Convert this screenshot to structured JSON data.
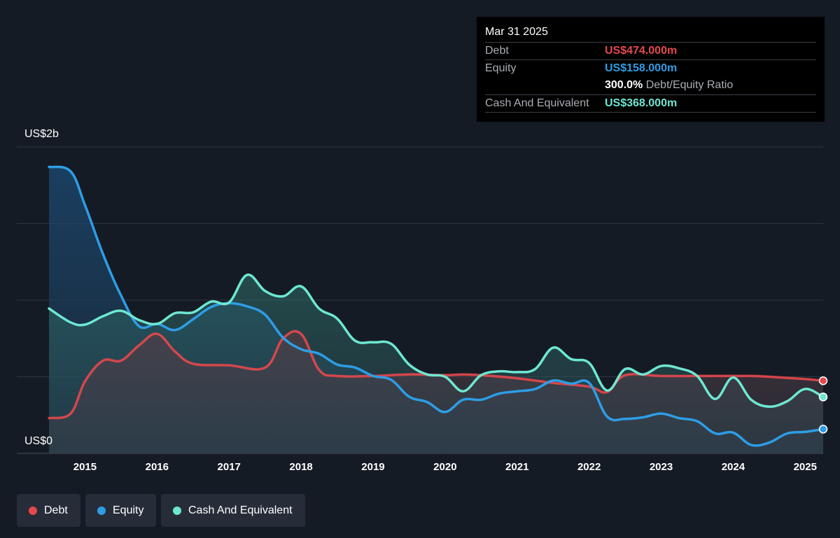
{
  "tooltip": {
    "date": "Mar 31 2025",
    "debt_label": "Debt",
    "debt_value": "US$474.000m",
    "equity_label": "Equity",
    "equity_value": "US$158.000m",
    "ratio_value": "300.0%",
    "ratio_label": "Debt/Equity Ratio",
    "cash_label": "Cash And Equivalent",
    "cash_value": "US$368.000m"
  },
  "legend": [
    {
      "name": "Debt",
      "color": "#e5484d"
    },
    {
      "name": "Equity",
      "color": "#2e9de6"
    },
    {
      "name": "Cash And Equivalent",
      "color": "#6ee7d2"
    }
  ],
  "colors": {
    "debt": "#e5484d",
    "equity": "#2e9de6",
    "cash": "#6ee7d2",
    "background": "#151b24",
    "grid": "#3a4350"
  },
  "chart_data": {
    "type": "area",
    "y_axis_labels": {
      "top": "US$2b",
      "bottom": "US$0"
    },
    "ylim": [
      0,
      2000
    ],
    "xlim": [
      2014.5,
      2025.25
    ],
    "x_ticks": [
      "2015",
      "2016",
      "2017",
      "2018",
      "2019",
      "2020",
      "2021",
      "2022",
      "2023",
      "2024",
      "2025"
    ],
    "grid": true,
    "series": [
      {
        "name": "Debt",
        "x": [
          2014.5,
          2014.8,
          2015.0,
          2015.25,
          2015.5,
          2015.75,
          2016.0,
          2016.25,
          2016.5,
          2017.0,
          2017.5,
          2017.75,
          2018.0,
          2018.25,
          2018.5,
          2019.0,
          2019.5,
          2020.0,
          2020.25,
          2020.5,
          2021.0,
          2021.5,
          2022.0,
          2022.25,
          2022.5,
          2023.0,
          2023.5,
          2024.0,
          2024.25,
          2024.5,
          2025.0,
          2025.25
        ],
        "y": [
          230,
          260,
          470,
          605,
          605,
          705,
          780,
          665,
          585,
          575,
          560,
          750,
          780,
          545,
          505,
          505,
          515,
          510,
          515,
          510,
          490,
          460,
          435,
          400,
          510,
          505,
          505,
          505,
          505,
          500,
          485,
          474
        ]
      },
      {
        "name": "Equity",
        "x": [
          2014.5,
          2014.8,
          2015.0,
          2015.25,
          2015.5,
          2015.75,
          2016.0,
          2016.25,
          2016.5,
          2016.75,
          2017.0,
          2017.25,
          2017.5,
          2017.75,
          2018.0,
          2018.25,
          2018.5,
          2018.75,
          2019.0,
          2019.25,
          2019.5,
          2019.75,
          2020.0,
          2020.25,
          2020.5,
          2020.75,
          2021.0,
          2021.25,
          2021.5,
          2021.75,
          2022.0,
          2022.25,
          2022.5,
          2022.75,
          2023.0,
          2023.25,
          2023.5,
          2023.75,
          2024.0,
          2024.25,
          2024.5,
          2024.75,
          2025.0,
          2025.25
        ],
        "y": [
          1870,
          1840,
          1620,
          1300,
          1030,
          830,
          845,
          805,
          875,
          955,
          980,
          960,
          905,
          755,
          680,
          650,
          580,
          560,
          505,
          480,
          370,
          335,
          270,
          350,
          350,
          390,
          405,
          420,
          475,
          455,
          460,
          240,
          225,
          235,
          260,
          230,
          210,
          130,
          135,
          55,
          70,
          130,
          140,
          158
        ]
      },
      {
        "name": "Cash And Equivalent",
        "x": [
          2014.5,
          2014.8,
          2015.0,
          2015.25,
          2015.5,
          2015.75,
          2016.0,
          2016.25,
          2016.5,
          2016.75,
          2017.0,
          2017.25,
          2017.5,
          2017.75,
          2018.0,
          2018.25,
          2018.5,
          2018.75,
          2019.0,
          2019.25,
          2019.5,
          2019.75,
          2020.0,
          2020.25,
          2020.5,
          2020.75,
          2021.0,
          2021.25,
          2021.5,
          2021.75,
          2022.0,
          2022.25,
          2022.5,
          2022.75,
          2023.0,
          2023.25,
          2023.5,
          2023.75,
          2024.0,
          2024.25,
          2024.5,
          2024.75,
          2025.0,
          2025.25
        ],
        "y": [
          945,
          855,
          840,
          895,
          930,
          870,
          845,
          915,
          920,
          990,
          985,
          1165,
          1060,
          1025,
          1090,
          945,
          880,
          735,
          725,
          715,
          580,
          515,
          500,
          405,
          510,
          535,
          530,
          550,
          690,
          615,
          590,
          410,
          550,
          515,
          570,
          555,
          505,
          355,
          495,
          350,
          305,
          340,
          420,
          368
        ]
      }
    ]
  }
}
